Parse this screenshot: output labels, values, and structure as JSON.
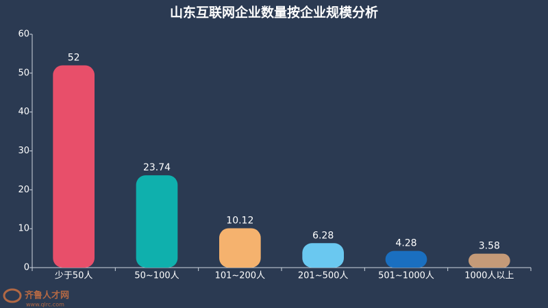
{
  "chart_data": {
    "type": "bar",
    "title": "山东互联网企业数量按企业规模分析",
    "categories": [
      "少于50人",
      "50~100人",
      "101~200人",
      "201~500人",
      "501~1000人",
      "1000人以上"
    ],
    "values": [
      52,
      23.74,
      10.12,
      6.28,
      4.28,
      3.58
    ],
    "colors": [
      "#e84f6a",
      "#0fb0ad",
      "#f5b26e",
      "#6ac8f0",
      "#1a6fc0",
      "#c49a78"
    ],
    "ylim": [
      0,
      60
    ],
    "yticks": [
      0,
      10,
      20,
      30,
      40,
      50,
      60
    ],
    "grid": false
  },
  "watermark": {
    "name": "齐鲁人才网",
    "url": "www.qlrc.com"
  }
}
